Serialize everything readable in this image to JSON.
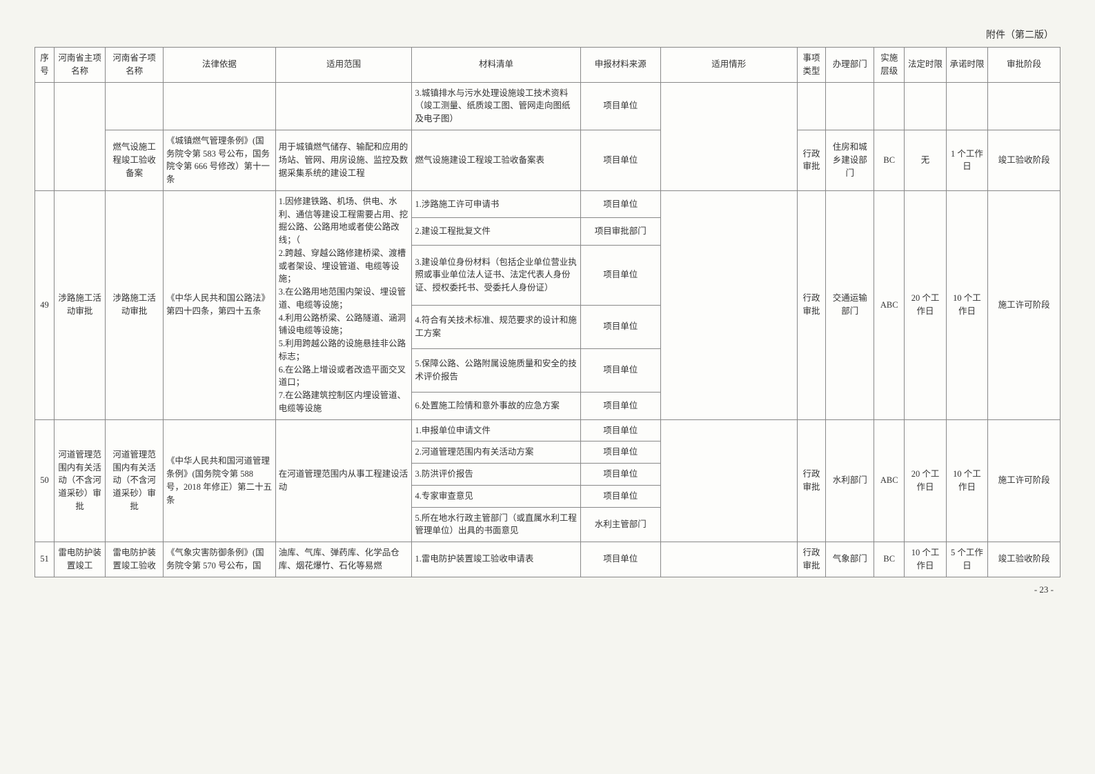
{
  "attachment_note": "附件（第二版）",
  "page_number": "- 23 -",
  "headers": {
    "seq": "序号",
    "main_item": "河南省主项名称",
    "sub_item": "河南省子项名称",
    "legal_basis": "法律依据",
    "scope": "适用范围",
    "material_list": "材料清单",
    "material_source": "申报材料来源",
    "situation": "适用情形",
    "matter_type": "事项类型",
    "dept": "办理部门",
    "impl_level": "实施层级",
    "legal_limit": "法定时限",
    "promise_limit": "承诺时限",
    "approval_stage": "审批阶段"
  },
  "row_top": {
    "material": "3.城镇排水与污水处理设施竣工技术资料（竣工测量、纸质竣工图、管网走向图纸及电子图）",
    "source": "项目单位"
  },
  "row_gas": {
    "sub_item": "燃气设施工程竣工验收备案",
    "legal_basis": "《城镇燃气管理条例》(国务院令第 583 号公布，国务院令第 666 号修改）第十一条",
    "scope": "用于城镇燃气储存、输配和应用的场站、管网、用房设施、监控及数据采集系统的建设工程",
    "material": "燃气设施建设工程竣工验收备案表",
    "source": "项目单位",
    "matter_type": "行政审批",
    "dept": "住房和城乡建设部门",
    "impl_level": "BC",
    "legal_limit": "无",
    "promise_limit": "1 个工作日",
    "approval_stage": "竣工验收阶段"
  },
  "row49": {
    "seq": "49",
    "main_item": "涉路施工活动审批",
    "sub_item": "涉路施工活动审批",
    "legal_basis": "《中华人民共和国公路法》第四十四条，第四十五条",
    "scope": "1.因修建铁路、机场、供电、水利、通信等建设工程需要占用、挖掘公路、公路用地或者使公路改线；（\n2.跨越、穿越公路修建桥梁、渡槽或者架设、埋设管道、电缆等设施；\n3.在公路用地范围内架设、埋设管道、电缆等设施；\n4.利用公路桥梁、公路隧道、涵洞铺设电缆等设施；\n5.利用跨越公路的设施悬挂非公路标志；\n6.在公路上增设或者改造平面交叉道口；\n7.在公路建筑控制区内埋设管道、电缆等设施",
    "materials": [
      {
        "text": "1.涉路施工许可申请书",
        "source": "项目单位"
      },
      {
        "text": "2.建设工程批复文件",
        "source": "项目审批部门"
      },
      {
        "text": "3.建设单位身份材料（包括企业单位营业执照或事业单位法人证书、法定代表人身份证、授权委托书、受委托人身份证）",
        "source": "项目单位"
      },
      {
        "text": "4.符合有关技术标准、规范要求的设计和施工方案",
        "source": "项目单位"
      },
      {
        "text": "5.保障公路、公路附属设施质量和安全的技术评价报告",
        "source": "项目单位"
      },
      {
        "text": "6.处置施工险情和意外事故的应急方案",
        "source": "项目单位"
      }
    ],
    "matter_type": "行政审批",
    "dept": "交通运输部门",
    "impl_level": "ABC",
    "legal_limit": "20 个工作日",
    "promise_limit": "10 个工作日",
    "approval_stage": "施工许可阶段"
  },
  "row50": {
    "seq": "50",
    "main_item": "河道管理范围内有关活动（不含河道采砂）审批",
    "sub_item": "河道管理范围内有关活动（不含河道采砂）审批",
    "legal_basis": "《中华人民共和国河道管理条例》(国务院令第 588 号，2018 年修正）第二十五条",
    "scope": "在河道管理范围内从事工程建设活动",
    "materials": [
      {
        "text": "1.申报单位申请文件",
        "source": "项目单位"
      },
      {
        "text": "2.河道管理范围内有关活动方案",
        "source": "项目单位"
      },
      {
        "text": "3.防洪评价报告",
        "source": "项目单位"
      },
      {
        "text": "4.专家审查意见",
        "source": "项目单位"
      },
      {
        "text": "5.所在地水行政主管部门（或直属水利工程管理单位）出具的书面意见",
        "source": "水利主管部门"
      }
    ],
    "matter_type": "行政审批",
    "dept": "水利部门",
    "impl_level": "ABC",
    "legal_limit": "20 个工作日",
    "promise_limit": "10 个工作日",
    "approval_stage": "施工许可阶段"
  },
  "row51": {
    "seq": "51",
    "main_item": "雷电防护装置竣工",
    "sub_item": "雷电防护装置竣工验收",
    "legal_basis": "《气象灾害防御条例》(国务院令第 570 号公布，国",
    "scope": "油库、气库、弹药库、化学品仓库、烟花爆竹、石化等易燃",
    "material": "1.雷电防护装置竣工验收申请表",
    "source": "项目单位",
    "matter_type": "行政审批",
    "dept": "气象部门",
    "impl_level": "BC",
    "legal_limit": "10 个工作日",
    "promise_limit": "5 个工作日",
    "approval_stage": "竣工验收阶段"
  }
}
